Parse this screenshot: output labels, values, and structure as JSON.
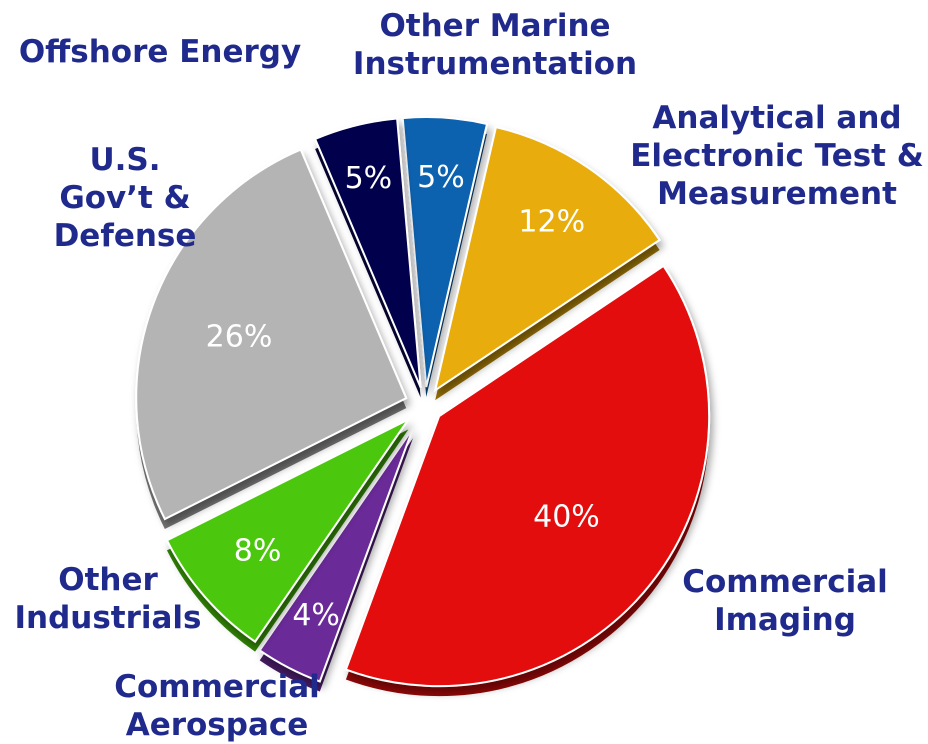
{
  "chart_data": {
    "type": "pie",
    "slices": [
      {
        "name": "Other Marine Instrumentation",
        "label_lines": [
          "Other Marine",
          "Instrumentation"
        ],
        "value": 5,
        "value_label": "5%",
        "color": "#0a62b0"
      },
      {
        "name": "Analytical and Electronic Test & Measurement",
        "label_lines": [
          "Analytical and",
          "Electronic Test &",
          "Measurement"
        ],
        "value": 12,
        "value_label": "12%",
        "color": "#e8ac0a"
      },
      {
        "name": "Commercial Imaging",
        "label_lines": [
          "Commercial",
          "Imaging"
        ],
        "value": 40,
        "value_label": "40%",
        "color": "#e40a0a"
      },
      {
        "name": "Commercial Aerospace",
        "label_lines": [
          "Commercial",
          "Aerospace"
        ],
        "value": 4,
        "value_label": "4%",
        "color": "#6a2a98"
      },
      {
        "name": "Other Industrials",
        "label_lines": [
          "Other",
          "Industrials"
        ],
        "value": 8,
        "value_label": "8%",
        "color": "#4cc80a"
      },
      {
        "name": "U.S. Gov't & Defense",
        "label_lines": [
          "U.S.",
          "Gov’t &",
          "Defense"
        ],
        "value": 26,
        "value_label": "26%",
        "color": "#b4b4b4"
      },
      {
        "name": "Offshore Energy",
        "label_lines": [
          "Offshore Energy"
        ],
        "value": 5,
        "value_label": "5%",
        "color": "#06064e"
      }
    ],
    "label_color": "#1f2a8c",
    "value_label_color": "#ffffff"
  }
}
